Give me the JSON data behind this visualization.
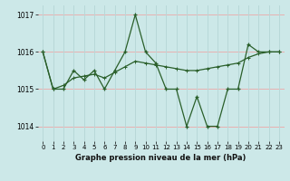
{
  "title": "Graphe pression niveau de la mer (hPa)",
  "background_color": "#cce8e8",
  "grid_color_h": "#e8b0b0",
  "grid_color_v": "#b8d8d8",
  "line_color": "#2a5f2a",
  "xlim": [
    -0.5,
    23.5
  ],
  "ylim": [
    1013.6,
    1017.25
  ],
  "yticks": [
    1014,
    1015,
    1016,
    1017
  ],
  "xticks": [
    0,
    1,
    2,
    3,
    4,
    5,
    6,
    7,
    8,
    9,
    10,
    11,
    12,
    13,
    14,
    15,
    16,
    17,
    18,
    19,
    20,
    21,
    22,
    23
  ],
  "series1_x": [
    0,
    1,
    2,
    3,
    4,
    5,
    6,
    7,
    8,
    9,
    10,
    11,
    12,
    13,
    14,
    15,
    16,
    17,
    18,
    19,
    20,
    21,
    22,
    23
  ],
  "series1_y": [
    1016.0,
    1015.0,
    1015.0,
    1015.5,
    1015.25,
    1015.5,
    1015.0,
    1015.5,
    1016.0,
    1017.0,
    1016.0,
    1015.7,
    1015.0,
    1015.0,
    1014.0,
    1014.8,
    1014.0,
    1014.0,
    1015.0,
    1015.0,
    1016.2,
    1016.0,
    1016.0,
    1016.0
  ],
  "series2_x": [
    0,
    1,
    2,
    3,
    4,
    5,
    6,
    7,
    8,
    9,
    10,
    11,
    12,
    13,
    14,
    15,
    16,
    17,
    18,
    19,
    20,
    21,
    22,
    23
  ],
  "series2_y": [
    1016.0,
    1015.0,
    1015.1,
    1015.3,
    1015.35,
    1015.4,
    1015.3,
    1015.45,
    1015.6,
    1015.75,
    1015.7,
    1015.65,
    1015.6,
    1015.55,
    1015.5,
    1015.5,
    1015.55,
    1015.6,
    1015.65,
    1015.7,
    1015.85,
    1015.95,
    1016.0,
    1016.0
  ]
}
